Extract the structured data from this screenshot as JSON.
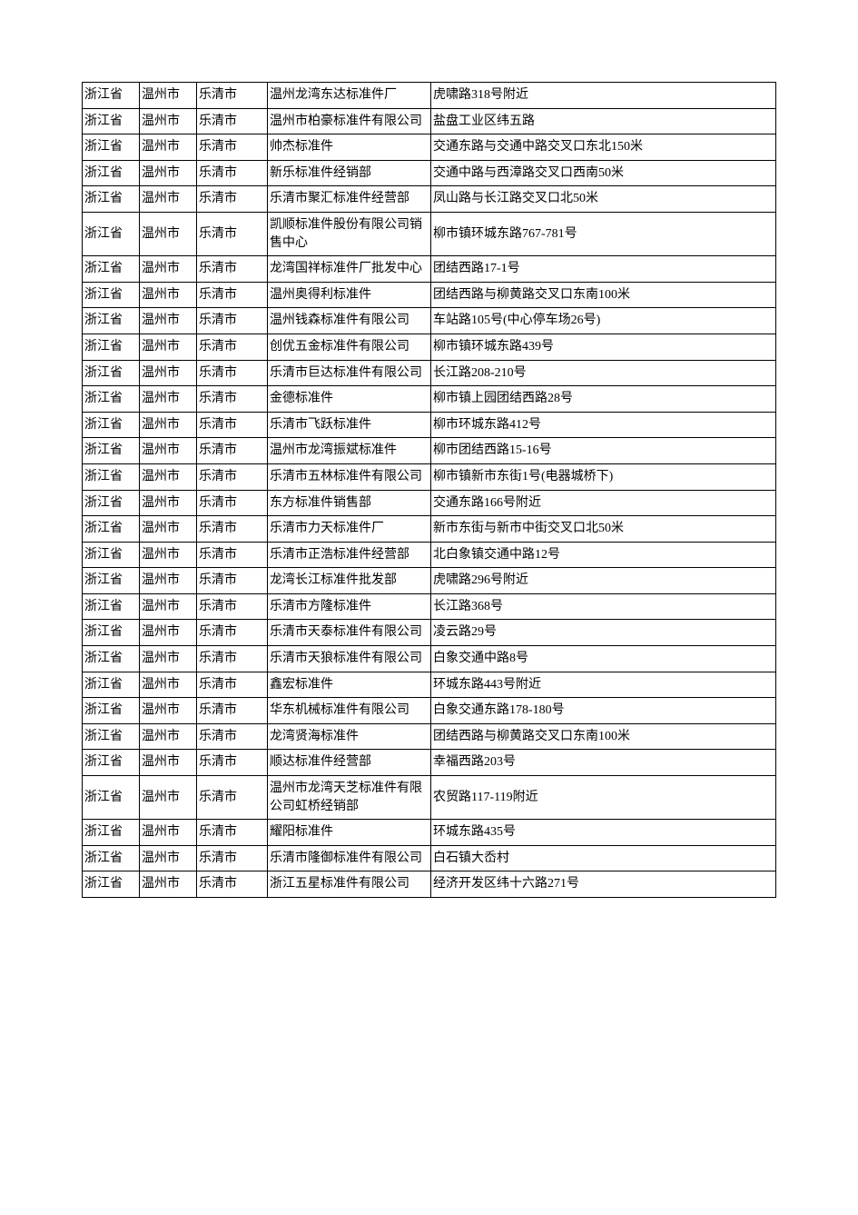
{
  "table": {
    "background_color": "#ffffff",
    "border_color": "#000000",
    "text_color": "#000000",
    "font_size": 14,
    "column_widths": {
      "province": 63,
      "city": 63,
      "county": 78,
      "name": 180
    },
    "rows": [
      {
        "province": "浙江省",
        "city": "温州市",
        "county": "乐清市",
        "name": "温州龙湾东达标准件厂",
        "address": "虎啸路318号附近"
      },
      {
        "province": "浙江省",
        "city": "温州市",
        "county": "乐清市",
        "name": "温州市柏豪标准件有限公司",
        "address": "盐盘工业区纬五路"
      },
      {
        "province": "浙江省",
        "city": "温州市",
        "county": "乐清市",
        "name": "帅杰标准件",
        "address": "交通东路与交通中路交叉口东北150米"
      },
      {
        "province": "浙江省",
        "city": "温州市",
        "county": "乐清市",
        "name": "新乐标准件经销部",
        "address": "交通中路与西漳路交叉口西南50米"
      },
      {
        "province": "浙江省",
        "city": "温州市",
        "county": "乐清市",
        "name": "乐清市聚汇标准件经营部",
        "address": "凤山路与长江路交叉口北50米"
      },
      {
        "province": "浙江省",
        "city": "温州市",
        "county": "乐清市",
        "name": "凯顺标准件股份有限公司销售中心",
        "address": "柳市镇环城东路767-781号"
      },
      {
        "province": "浙江省",
        "city": "温州市",
        "county": "乐清市",
        "name": "龙湾国祥标准件厂批发中心",
        "address": "团结西路17-1号"
      },
      {
        "province": "浙江省",
        "city": "温州市",
        "county": "乐清市",
        "name": "温州奥得利标准件",
        "address": "团结西路与柳黄路交叉口东南100米"
      },
      {
        "province": "浙江省",
        "city": "温州市",
        "county": "乐清市",
        "name": "温州钱森标准件有限公司",
        "address": "车站路105号(中心停车场26号)"
      },
      {
        "province": "浙江省",
        "city": "温州市",
        "county": "乐清市",
        "name": "创优五金标准件有限公司",
        "address": "柳市镇环城东路439号"
      },
      {
        "province": "浙江省",
        "city": "温州市",
        "county": "乐清市",
        "name": "乐清市巨达标准件有限公司",
        "address": "长江路208-210号"
      },
      {
        "province": "浙江省",
        "city": "温州市",
        "county": "乐清市",
        "name": "金德标准件",
        "address": "柳市镇上园团结西路28号"
      },
      {
        "province": "浙江省",
        "city": "温州市",
        "county": "乐清市",
        "name": "乐清市飞跃标准件",
        "address": "柳市环城东路412号"
      },
      {
        "province": "浙江省",
        "city": "温州市",
        "county": "乐清市",
        "name": "温州市龙湾振斌标准件",
        "address": "柳市团结西路15-16号"
      },
      {
        "province": "浙江省",
        "city": "温州市",
        "county": "乐清市",
        "name": "乐清市五林标准件有限公司",
        "address": "柳市镇新市东街1号(电器城桥下)"
      },
      {
        "province": "浙江省",
        "city": "温州市",
        "county": "乐清市",
        "name": "东方标准件销售部",
        "address": "交通东路166号附近"
      },
      {
        "province": "浙江省",
        "city": "温州市",
        "county": "乐清市",
        "name": "乐清市力天标准件厂",
        "address": "新市东街与新市中街交叉口北50米"
      },
      {
        "province": "浙江省",
        "city": "温州市",
        "county": "乐清市",
        "name": "乐清市正浩标准件经营部",
        "address": "北白象镇交通中路12号"
      },
      {
        "province": "浙江省",
        "city": "温州市",
        "county": "乐清市",
        "name": "龙湾长江标准件批发部",
        "address": "虎啸路296号附近"
      },
      {
        "province": "浙江省",
        "city": "温州市",
        "county": "乐清市",
        "name": "乐清市方隆标准件",
        "address": "长江路368号"
      },
      {
        "province": "浙江省",
        "city": "温州市",
        "county": "乐清市",
        "name": "乐清市天泰标准件有限公司",
        "address": "凌云路29号"
      },
      {
        "province": "浙江省",
        "city": "温州市",
        "county": "乐清市",
        "name": "乐清市天狼标准件有限公司",
        "address": "白象交通中路8号"
      },
      {
        "province": "浙江省",
        "city": "温州市",
        "county": "乐清市",
        "name": "鑫宏标准件",
        "address": "环城东路443号附近"
      },
      {
        "province": "浙江省",
        "city": "温州市",
        "county": "乐清市",
        "name": "华东机械标准件有限公司",
        "address": "白象交通东路178-180号"
      },
      {
        "province": "浙江省",
        "city": "温州市",
        "county": "乐清市",
        "name": "龙湾贤海标准件",
        "address": "团结西路与柳黄路交叉口东南100米"
      },
      {
        "province": "浙江省",
        "city": "温州市",
        "county": "乐清市",
        "name": "顺达标准件经营部",
        "address": "幸福西路203号"
      },
      {
        "province": "浙江省",
        "city": "温州市",
        "county": "乐清市",
        "name": "温州市龙湾天芝标准件有限公司虹桥经销部",
        "address": "农贸路117-119附近"
      },
      {
        "province": "浙江省",
        "city": "温州市",
        "county": "乐清市",
        "name": "耀阳标准件",
        "address": "环城东路435号"
      },
      {
        "province": "浙江省",
        "city": "温州市",
        "county": "乐清市",
        "name": "乐清市隆御标准件有限公司",
        "address": "白石镇大岙村"
      },
      {
        "province": "浙江省",
        "city": "温州市",
        "county": "乐清市",
        "name": "浙江五星标准件有限公司",
        "address": "经济开发区纬十六路271号"
      }
    ]
  }
}
